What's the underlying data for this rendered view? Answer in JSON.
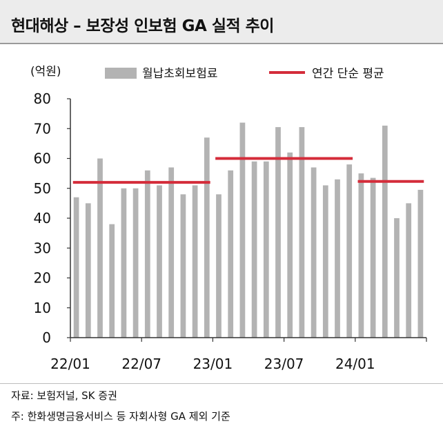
{
  "title": "현대해상 – 보장성 인보험 GA 실적 추이",
  "unit": "(억원)",
  "source": "자료: 보험저널, SK 증권",
  "note": "주: 한화생명금융서비스 등 자회사형 GA 제외 기준",
  "colors": {
    "bar": "#b3b3b3",
    "avg_line": "#d42c3a",
    "axis": "#333333"
  },
  "chart_data": {
    "type": "bar",
    "categories": [
      "22/01",
      "22/02",
      "22/03",
      "22/04",
      "22/05",
      "22/06",
      "22/07",
      "22/08",
      "22/09",
      "22/10",
      "22/11",
      "22/12",
      "23/01",
      "23/02",
      "23/03",
      "23/04",
      "23/05",
      "23/06",
      "23/07",
      "23/08",
      "23/09",
      "23/10",
      "23/11",
      "23/12",
      "24/01",
      "24/02",
      "24/03",
      "24/04",
      "24/05",
      "24/06"
    ],
    "tick_labels": [
      "22/01",
      "22/07",
      "23/01",
      "23/07",
      "24/01"
    ],
    "tick_label_indices": [
      0,
      6,
      12,
      18,
      24
    ],
    "series": [
      {
        "name": "월납초회보험료",
        "type": "bar",
        "values": [
          47,
          45,
          60,
          38,
          50,
          50,
          56,
          51,
          57,
          48,
          51,
          67,
          48,
          56,
          72,
          59,
          59,
          70.5,
          62,
          70.5,
          57,
          51,
          53,
          58,
          55,
          53.5,
          71,
          40,
          45,
          49.5
        ]
      },
      {
        "name": "연간 단순 평균",
        "type": "line",
        "segments": [
          {
            "start": "22/01",
            "end": "22/12",
            "value": 52
          },
          {
            "start": "23/01",
            "end": "23/12",
            "value": 60
          },
          {
            "start": "24/01",
            "end": "24/06",
            "value": 52.3
          }
        ]
      }
    ],
    "yticks": [
      0,
      10,
      20,
      30,
      40,
      50,
      60,
      70,
      80
    ],
    "ylim": [
      0,
      80
    ],
    "grid": false,
    "legend": "top"
  }
}
